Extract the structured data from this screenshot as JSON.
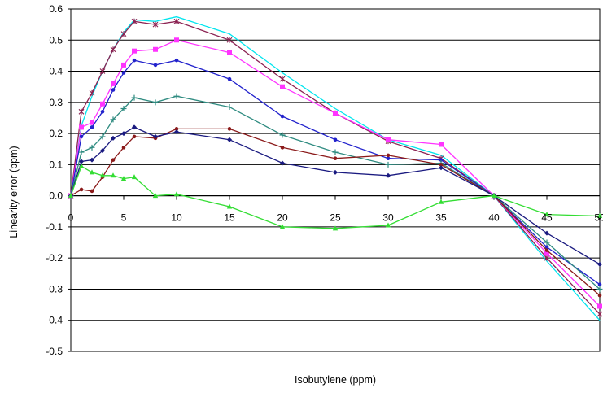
{
  "chart_data": {
    "type": "line",
    "title": "",
    "xlabel": "Isobutylene (ppm)",
    "ylabel": "Linearity error (ppm)",
    "xlim": [
      0,
      50
    ],
    "ylim": [
      -0.5,
      0.6
    ],
    "x_ticks": [
      "0",
      "5",
      "10",
      "15",
      "20",
      "25",
      "30",
      "35",
      "40",
      "45",
      "50"
    ],
    "y_ticks": [
      "0.6",
      "0.5",
      "0.4",
      "0.3",
      "0.2",
      "0.1",
      "0.0",
      "-0.1",
      "-0.2",
      "-0.3",
      "-0.4",
      "-0.5"
    ],
    "grid": "horizontal",
    "legend": "none",
    "series": [
      {
        "color": "#00e5ee",
        "marker": "none",
        "points": [
          [
            0,
            0
          ],
          [
            1,
            0.225
          ],
          [
            2,
            0.32
          ],
          [
            3,
            0.4
          ],
          [
            4,
            0.47
          ],
          [
            5,
            0.525
          ],
          [
            6,
            0.565
          ],
          [
            8,
            0.56
          ],
          [
            10,
            0.575
          ],
          [
            15,
            0.52
          ],
          [
            20,
            0.395
          ],
          [
            25,
            0.28
          ],
          [
            30,
            0.18
          ],
          [
            35,
            0.13
          ],
          [
            40,
            0
          ],
          [
            45,
            -0.21
          ],
          [
            50,
            -0.4
          ]
        ]
      },
      {
        "color": "#8b2252",
        "marker": "star",
        "points": [
          [
            0,
            0
          ],
          [
            1,
            0.27
          ],
          [
            2,
            0.33
          ],
          [
            3,
            0.4
          ],
          [
            4,
            0.47
          ],
          [
            5,
            0.52
          ],
          [
            6,
            0.56
          ],
          [
            8,
            0.55
          ],
          [
            10,
            0.56
          ],
          [
            15,
            0.5
          ],
          [
            20,
            0.375
          ],
          [
            25,
            0.265
          ],
          [
            30,
            0.175
          ],
          [
            35,
            0.12
          ],
          [
            40,
            0
          ],
          [
            45,
            -0.2
          ],
          [
            50,
            -0.38
          ]
        ]
      },
      {
        "color": "#ff33ff",
        "marker": "square",
        "points": [
          [
            0,
            0
          ],
          [
            1,
            0.22
          ],
          [
            2,
            0.235
          ],
          [
            3,
            0.295
          ],
          [
            4,
            0.36
          ],
          [
            5,
            0.42
          ],
          [
            6,
            0.465
          ],
          [
            8,
            0.47
          ],
          [
            10,
            0.5
          ],
          [
            15,
            0.46
          ],
          [
            20,
            0.35
          ],
          [
            25,
            0.265
          ],
          [
            30,
            0.18
          ],
          [
            35,
            0.165
          ],
          [
            40,
            0
          ],
          [
            45,
            -0.185
          ],
          [
            50,
            -0.355
          ]
        ]
      },
      {
        "color": "#2222cc",
        "marker": "dot",
        "points": [
          [
            0,
            0
          ],
          [
            1,
            0.19
          ],
          [
            2,
            0.22
          ],
          [
            3,
            0.27
          ],
          [
            4,
            0.34
          ],
          [
            5,
            0.395
          ],
          [
            6,
            0.435
          ],
          [
            8,
            0.42
          ],
          [
            10,
            0.435
          ],
          [
            15,
            0.375
          ],
          [
            20,
            0.255
          ],
          [
            25,
            0.18
          ],
          [
            30,
            0.12
          ],
          [
            35,
            0.115
          ],
          [
            40,
            0
          ],
          [
            45,
            -0.165
          ],
          [
            50,
            -0.285
          ]
        ]
      },
      {
        "color": "#2e8b80",
        "marker": "plus",
        "points": [
          [
            0,
            0
          ],
          [
            1,
            0.14
          ],
          [
            2,
            0.155
          ],
          [
            3,
            0.19
          ],
          [
            4,
            0.245
          ],
          [
            5,
            0.28
          ],
          [
            6,
            0.315
          ],
          [
            8,
            0.3
          ],
          [
            10,
            0.32
          ],
          [
            15,
            0.285
          ],
          [
            20,
            0.195
          ],
          [
            25,
            0.14
          ],
          [
            30,
            0.1
          ],
          [
            35,
            0.105
          ],
          [
            40,
            0
          ],
          [
            45,
            -0.15
          ],
          [
            50,
            -0.3
          ]
        ]
      },
      {
        "color": "#8b1a1a",
        "marker": "dot",
        "points": [
          [
            0,
            0
          ],
          [
            1,
            0.02
          ],
          [
            2,
            0.015
          ],
          [
            3,
            0.06
          ],
          [
            4,
            0.115
          ],
          [
            5,
            0.155
          ],
          [
            6,
            0.19
          ],
          [
            8,
            0.185
          ],
          [
            10,
            0.215
          ],
          [
            15,
            0.215
          ],
          [
            20,
            0.155
          ],
          [
            25,
            0.12
          ],
          [
            30,
            0.13
          ],
          [
            35,
            0.1
          ],
          [
            40,
            0
          ],
          [
            45,
            -0.175
          ],
          [
            50,
            -0.32
          ]
        ]
      },
      {
        "color": "#1a1a80",
        "marker": "diamond",
        "points": [
          [
            0,
            0
          ],
          [
            1,
            0.11
          ],
          [
            2,
            0.115
          ],
          [
            3,
            0.145
          ],
          [
            4,
            0.185
          ],
          [
            5,
            0.2
          ],
          [
            6,
            0.22
          ],
          [
            8,
            0.19
          ],
          [
            10,
            0.205
          ],
          [
            15,
            0.18
          ],
          [
            20,
            0.105
          ],
          [
            25,
            0.075
          ],
          [
            30,
            0.065
          ],
          [
            35,
            0.09
          ],
          [
            40,
            0
          ],
          [
            45,
            -0.12
          ],
          [
            50,
            -0.22
          ]
        ]
      },
      {
        "color": "#33dd33",
        "marker": "triangle",
        "points": [
          [
            0,
            0
          ],
          [
            1,
            0.095
          ],
          [
            2,
            0.075
          ],
          [
            3,
            0.065
          ],
          [
            4,
            0.065
          ],
          [
            5,
            0.055
          ],
          [
            6,
            0.06
          ],
          [
            8,
            0.0
          ],
          [
            10,
            0.005
          ],
          [
            15,
            -0.035
          ],
          [
            20,
            -0.1
          ],
          [
            25,
            -0.105
          ],
          [
            30,
            -0.095
          ],
          [
            35,
            -0.02
          ],
          [
            40,
            0
          ],
          [
            45,
            -0.06
          ],
          [
            50,
            -0.065
          ]
        ]
      }
    ]
  }
}
